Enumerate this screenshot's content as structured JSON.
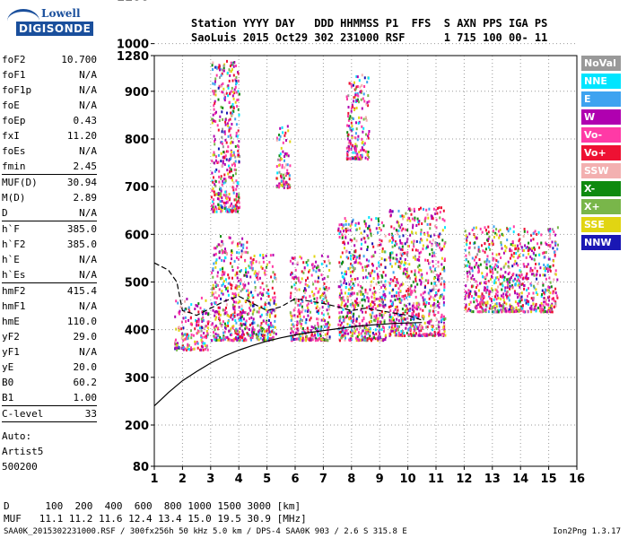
{
  "logo": {
    "line1": "Lowell",
    "line2": "DIGISONDE"
  },
  "header": {
    "labels": "Station YYYY DAY   DDD HHMMSS P1  FFS  S AXN PPS IGA PS",
    "values": "SaoLuis 2015 Oct29 302 231000 RSF      1 715 100 00- 11"
  },
  "params": [
    {
      "name": "foF2",
      "value": "10.700"
    },
    {
      "name": "foF1",
      "value": "N/A"
    },
    {
      "name": "foF1p",
      "value": "N/A"
    },
    {
      "name": "foE",
      "value": "N/A"
    },
    {
      "name": "foEp",
      "value": "0.43"
    },
    {
      "name": "fxI",
      "value": "11.20"
    },
    {
      "name": "foEs",
      "value": "N/A"
    },
    {
      "name": "fmin",
      "value": "2.45"
    },
    {
      "name": "sep"
    },
    {
      "name": "MUF(D)",
      "value": "30.94"
    },
    {
      "name": "M(D)",
      "value": "2.89"
    },
    {
      "name": "D",
      "value": "N/A"
    },
    {
      "name": "sep"
    },
    {
      "name": "h`F",
      "value": "385.0"
    },
    {
      "name": "h`F2",
      "value": "385.0"
    },
    {
      "name": "h`E",
      "value": "N/A"
    },
    {
      "name": "h`Es",
      "value": "N/A"
    },
    {
      "name": "sep"
    },
    {
      "name": "hmF2",
      "value": "415.4"
    },
    {
      "name": "hmF1",
      "value": "N/A"
    },
    {
      "name": "hmE",
      "value": "110.0"
    },
    {
      "name": "yF2",
      "value": "29.0"
    },
    {
      "name": "yF1",
      "value": "N/A"
    },
    {
      "name": "yE",
      "value": "20.0"
    },
    {
      "name": "B0",
      "value": "60.2"
    },
    {
      "name": "B1",
      "value": "1.00"
    },
    {
      "name": "sep"
    },
    {
      "name": "C-level",
      "value": "33"
    },
    {
      "name": "sep"
    }
  ],
  "auto": {
    "line1": "Auto:",
    "line2": "Artist5",
    "line3": "500200"
  },
  "legend": [
    {
      "label": "NoVal",
      "color": "#999999"
    },
    {
      "label": "NNE",
      "color": "#00e5ff"
    },
    {
      "label": "E",
      "color": "#3ea3f0"
    },
    {
      "label": "W",
      "color": "#b000b0"
    },
    {
      "label": "Vo-",
      "color": "#ff3aa6"
    },
    {
      "label": "Vo+",
      "color": "#ee1133"
    },
    {
      "label": "SSW",
      "color": "#f3b0b0"
    },
    {
      "label": "X-",
      "color": "#0f8a0f"
    },
    {
      "label": "X+",
      "color": "#79b64a"
    },
    {
      "label": "SSE",
      "color": "#e1d512"
    },
    {
      "label": "NNW",
      "color": "#1a17b4"
    }
  ],
  "muf_table": {
    "line1": "D      100  200  400  600  800 1000 1500 3000 [km]",
    "line2": "MUF   11.1 11.2 11.6 12.4 13.4 15.0 19.5 30.9 [MHz]"
  },
  "footer": "SAA0K_2015302231000.RSF / 300fx256h 50 kHz 5.0 km / DPS-4 SAA0K 903 / 2.6 S 315.8 E",
  "version": "Ion2Png 1.3.17",
  "chart_data": {
    "type": "scatter",
    "title": "",
    "xlabel": "",
    "ylabel": "",
    "x_ticks": [
      1,
      2,
      3,
      4,
      5,
      6,
      7,
      8,
      9,
      10,
      11,
      12,
      13,
      14,
      15,
      16
    ],
    "y_ticks": [
      80,
      200,
      300,
      400,
      500,
      600,
      700,
      800,
      900,
      1000,
      1100,
      1280
    ],
    "xlim": [
      1,
      16
    ],
    "ylim": [
      80,
      1280
    ],
    "profile_line": {
      "x": [
        1.0,
        1.5,
        2.0,
        2.5,
        3.0,
        3.5,
        4.0,
        4.5,
        5.0,
        5.5,
        6.0,
        6.5,
        7.0,
        7.5,
        8.0,
        8.5,
        9.0,
        9.5,
        10.0,
        10.5
      ],
      "y": [
        240,
        268,
        293,
        312,
        330,
        345,
        357,
        367,
        376,
        383,
        389,
        394,
        398,
        402,
        406,
        409,
        411,
        413,
        414,
        415
      ]
    },
    "trace_line": {
      "x": [
        1.0,
        1.5,
        1.8,
        2.0,
        2.3,
        2.5,
        3.0,
        3.5,
        4.0,
        4.5,
        5.0,
        5.5,
        6.0,
        6.5,
        7.0,
        7.5,
        8.0,
        8.5,
        9.0,
        9.5,
        10.0,
        10.5
      ],
      "y": [
        540,
        525,
        500,
        440,
        435,
        430,
        445,
        460,
        470,
        455,
        440,
        448,
        465,
        460,
        455,
        448,
        440,
        445,
        440,
        435,
        430,
        420
      ]
    },
    "echo_clusters": [
      {
        "x": [
          1.7,
          2.9
        ],
        "y": [
          360,
          470
        ]
      },
      {
        "x": [
          3.0,
          4.3
        ],
        "y": [
          380,
          600
        ]
      },
      {
        "x": [
          3.0,
          4.0
        ],
        "y": [
          650,
          970
        ]
      },
      {
        "x": [
          4.3,
          5.3
        ],
        "y": [
          380,
          560
        ]
      },
      {
        "x": [
          5.3,
          5.8
        ],
        "y": [
          700,
          830
        ]
      },
      {
        "x": [
          5.8,
          7.2
        ],
        "y": [
          380,
          560
        ]
      },
      {
        "x": [
          7.5,
          9.2
        ],
        "y": [
          380,
          640
        ]
      },
      {
        "x": [
          7.8,
          8.6
        ],
        "y": [
          760,
          940
        ]
      },
      {
        "x": [
          9.3,
          11.3
        ],
        "y": [
          390,
          660
        ]
      },
      {
        "x": [
          12.0,
          15.3
        ],
        "y": [
          440,
          620
        ]
      }
    ],
    "colors": [
      "#999999",
      "#00e5ff",
      "#3ea3f0",
      "#b000b0",
      "#ff3aa6",
      "#ee1133",
      "#f3b0b0",
      "#0f8a0f",
      "#79b64a",
      "#e1d512",
      "#1a17b4"
    ]
  }
}
